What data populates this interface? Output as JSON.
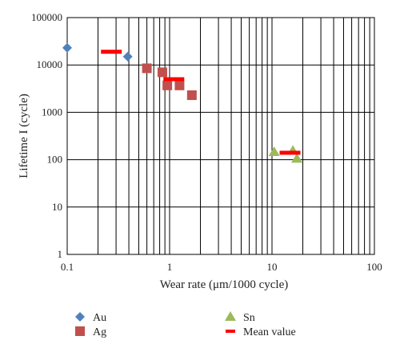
{
  "chart_data": {
    "type": "scatter",
    "xlabel": "Wear rate (μm/1000 cycle)",
    "ylabel": "Lifetime I (cycle)",
    "x_scale": "log",
    "y_scale": "log",
    "xlim": [
      0.1,
      100
    ],
    "ylim": [
      1,
      100000
    ],
    "x_ticks": [
      "0.1",
      "1",
      "10",
      "100"
    ],
    "y_ticks": [
      "1",
      "10",
      "100",
      "1000",
      "10000",
      "100000"
    ],
    "grid": true,
    "legend_position": "bottom",
    "series": [
      {
        "name": "Au",
        "marker": "diamond",
        "color": "#4f81bd",
        "points": [
          [
            0.1,
            23000
          ],
          [
            0.39,
            15000
          ]
        ]
      },
      {
        "name": "Ag",
        "marker": "square",
        "color": "#c0504d",
        "points": [
          [
            0.6,
            8500
          ],
          [
            0.85,
            7000
          ],
          [
            0.95,
            3700
          ],
          [
            1.25,
            3700
          ],
          [
            1.65,
            2300
          ]
        ]
      },
      {
        "name": "Sn",
        "marker": "triangle",
        "color": "#9bbb59",
        "points": [
          [
            10.5,
            145
          ],
          [
            16.0,
            155
          ],
          [
            17.5,
            105
          ]
        ]
      },
      {
        "name": "Mean value",
        "marker": "dash",
        "color": "#ff0000",
        "points": [
          [
            0.27,
            19000
          ],
          [
            1.1,
            5000
          ],
          [
            15.0,
            140
          ]
        ]
      }
    ]
  }
}
